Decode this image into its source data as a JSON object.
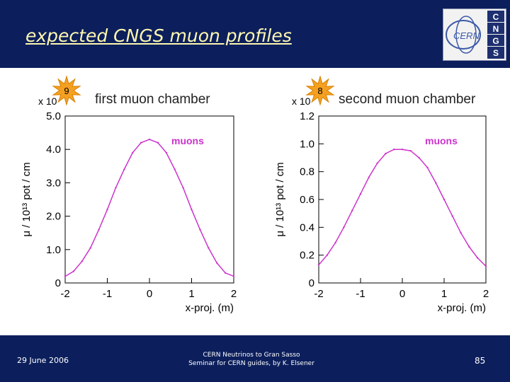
{
  "slide": {
    "title": "expected CNGS muon profiles",
    "logo_letters": [
      "C",
      "N",
      "G",
      "S"
    ],
    "logo_text": "CERN",
    "footer_date": "29 June 2006",
    "footer_line1": "CERN Neutrinos to Gran Sasso",
    "footer_line2": "Seminar for CERN guides, by K. Elsener",
    "page_number": "85",
    "colors": {
      "background": "#0c1f5c",
      "title": "#fff8b0",
      "curve": "#cc33cc",
      "star": "#f5a020"
    }
  },
  "chart_data": [
    {
      "type": "line",
      "title": "first muon chamber",
      "xlabel": "x-proj. (m)",
      "ylabel": "μ / 10¹³ pot / cm",
      "scale_factor": "x 10",
      "exponent": "9",
      "series": [
        {
          "name": "muons"
        }
      ],
      "xlim": [
        -2,
        2
      ],
      "ylim": [
        0,
        5.0
      ],
      "xticks": [
        "-2",
        "-1",
        "0",
        "1",
        "2"
      ],
      "yticks": [
        "0",
        "1.0",
        "2.0",
        "3.0",
        "4.0",
        "5.0"
      ],
      "x": [
        -2.0,
        -1.8,
        -1.6,
        -1.4,
        -1.2,
        -1.0,
        -0.8,
        -0.6,
        -0.4,
        -0.2,
        0.0,
        0.2,
        0.4,
        0.6,
        0.8,
        1.0,
        1.2,
        1.4,
        1.6,
        1.8,
        2.0
      ],
      "y": [
        0.2,
        0.35,
        0.65,
        1.05,
        1.6,
        2.2,
        2.85,
        3.4,
        3.9,
        4.2,
        4.3,
        4.2,
        3.9,
        3.4,
        2.85,
        2.2,
        1.6,
        1.05,
        0.6,
        0.3,
        0.2
      ]
    },
    {
      "type": "line",
      "title": "second muon chamber",
      "xlabel": "x-proj. (m)",
      "ylabel": "μ / 10¹³ pot / cm",
      "scale_factor": "x 10",
      "exponent": "8",
      "series": [
        {
          "name": "muons"
        }
      ],
      "xlim": [
        -2,
        2
      ],
      "ylim": [
        0,
        1.2
      ],
      "xticks": [
        "-2",
        "-1",
        "0",
        "1",
        "2"
      ],
      "yticks": [
        "0",
        "0.2",
        "0.4",
        "0.6",
        "0.8",
        "1.0",
        "1.2"
      ],
      "x": [
        -2.0,
        -1.8,
        -1.6,
        -1.4,
        -1.2,
        -1.0,
        -0.8,
        -0.6,
        -0.4,
        -0.2,
        0.0,
        0.2,
        0.4,
        0.6,
        0.8,
        1.0,
        1.2,
        1.4,
        1.6,
        1.8,
        2.0
      ],
      "y": [
        0.13,
        0.2,
        0.29,
        0.4,
        0.52,
        0.64,
        0.76,
        0.86,
        0.93,
        0.96,
        0.96,
        0.95,
        0.9,
        0.83,
        0.72,
        0.6,
        0.48,
        0.36,
        0.26,
        0.18,
        0.12
      ]
    }
  ]
}
